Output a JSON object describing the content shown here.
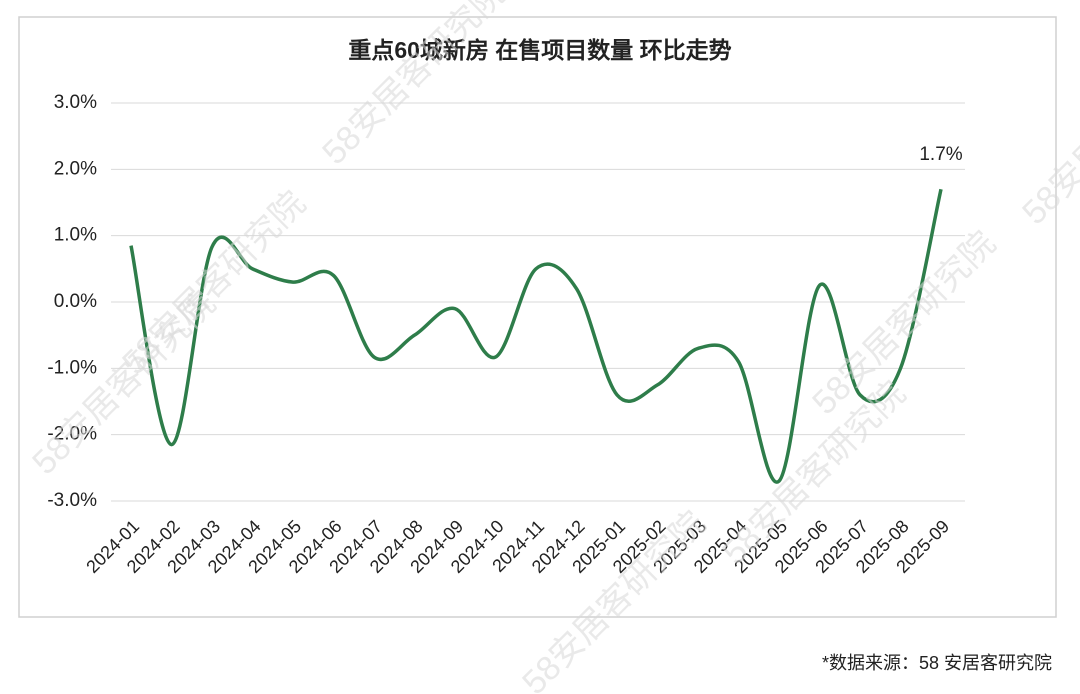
{
  "chart_data": {
    "type": "line",
    "title": "重点60城新房 在售项目数量 环比走势",
    "source": "*数据来源：58 安居客研究院",
    "watermark": "58安居客研究院",
    "categories": [
      "2024-01",
      "2024-02",
      "2024-03",
      "2024-04",
      "2024-05",
      "2024-06",
      "2024-07",
      "2024-08",
      "2024-09",
      "2024-10",
      "2024-11",
      "2024-12",
      "2025-01",
      "2025-02",
      "2025-03",
      "2025-04",
      "2025-05",
      "2025-06",
      "2025-07",
      "2025-08",
      "2025-09"
    ],
    "series": [
      {
        "color": "#2e7d4a",
        "values": [
          0.85,
          -2.15,
          0.83,
          0.5,
          0.3,
          0.4,
          -0.83,
          -0.5,
          -0.1,
          -0.83,
          0.5,
          0.2,
          -1.4,
          -1.25,
          -0.7,
          -0.9,
          -2.7,
          0.25,
          -1.4,
          -1.0,
          1.7
        ],
        "value_labels": [
          null,
          null,
          null,
          null,
          null,
          null,
          null,
          null,
          null,
          null,
          null,
          null,
          null,
          null,
          null,
          null,
          null,
          null,
          null,
          null,
          "1.7%"
        ]
      }
    ],
    "ylim": [
      -3,
      3
    ],
    "yticks": [
      {
        "value": -3,
        "label": "-3.0%"
      },
      {
        "value": -2,
        "label": "-2.0%"
      },
      {
        "value": -1,
        "label": "-1.0%"
      },
      {
        "value": 0,
        "label": "0.0%"
      },
      {
        "value": 1,
        "label": "1.0%"
      },
      {
        "value": 2,
        "label": "2.0%"
      },
      {
        "value": 3,
        "label": "3.0%"
      }
    ],
    "grid": true
  }
}
